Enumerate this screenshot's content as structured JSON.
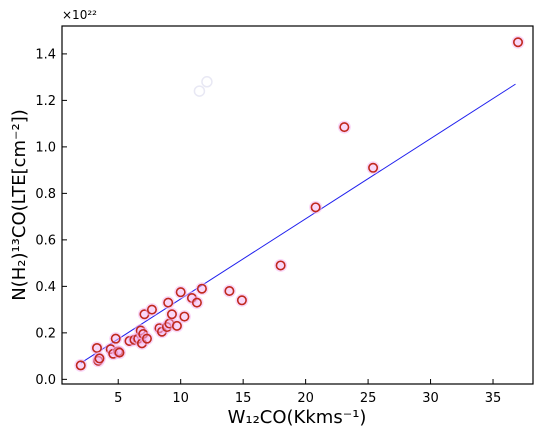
{
  "chart_data": {
    "type": "scatter",
    "xlim": [
      0.5,
      38.2
    ],
    "ylim": [
      -0.02,
      1.52
    ],
    "x_ticks": [
      5,
      10,
      15,
      20,
      25,
      30,
      35
    ],
    "y_ticks": [
      0.0,
      0.2,
      0.4,
      0.6,
      0.8,
      1.0,
      1.2,
      1.4
    ],
    "x_tick_labels": [
      "5",
      "10",
      "15",
      "20",
      "25",
      "30",
      "35"
    ],
    "y_tick_labels": [
      "0.0",
      "0.2",
      "0.4",
      "0.6",
      "0.8",
      "1.0",
      "1.2",
      "1.4"
    ],
    "y_scale_note": "×10²²",
    "xlabel": "W₁₂CO(Kkms⁻¹)",
    "ylabel": "N(H₂)¹³CO(LTE[cm⁻²])",
    "grid": false,
    "legend": "none",
    "colors": {
      "marker_edge": "#c0281c",
      "marker_halo": "#f4b6f2",
      "fit_line": "#2020ee"
    },
    "points": [
      {
        "x": 2.0,
        "y": 0.06
      },
      {
        "x": 3.3,
        "y": 0.135
      },
      {
        "x": 3.4,
        "y": 0.08
      },
      {
        "x": 3.5,
        "y": 0.09
      },
      {
        "x": 4.4,
        "y": 0.13
      },
      {
        "x": 4.6,
        "y": 0.11
      },
      {
        "x": 4.8,
        "y": 0.175
      },
      {
        "x": 5.0,
        "y": 0.12
      },
      {
        "x": 5.1,
        "y": 0.115
      },
      {
        "x": 5.9,
        "y": 0.165
      },
      {
        "x": 6.3,
        "y": 0.17
      },
      {
        "x": 6.6,
        "y": 0.175
      },
      {
        "x": 6.8,
        "y": 0.21
      },
      {
        "x": 6.9,
        "y": 0.155
      },
      {
        "x": 7.0,
        "y": 0.195
      },
      {
        "x": 7.1,
        "y": 0.28
      },
      {
        "x": 7.3,
        "y": 0.175
      },
      {
        "x": 7.7,
        "y": 0.3
      },
      {
        "x": 8.3,
        "y": 0.22
      },
      {
        "x": 8.5,
        "y": 0.205
      },
      {
        "x": 8.9,
        "y": 0.225
      },
      {
        "x": 9.0,
        "y": 0.33
      },
      {
        "x": 9.1,
        "y": 0.24
      },
      {
        "x": 9.3,
        "y": 0.28
      },
      {
        "x": 9.7,
        "y": 0.23
      },
      {
        "x": 10.0,
        "y": 0.375
      },
      {
        "x": 10.3,
        "y": 0.27
      },
      {
        "x": 10.9,
        "y": 0.35
      },
      {
        "x": 11.3,
        "y": 0.33
      },
      {
        "x": 11.7,
        "y": 0.39
      },
      {
        "x": 13.9,
        "y": 0.38
      },
      {
        "x": 14.9,
        "y": 0.34
      },
      {
        "x": 18.0,
        "y": 0.49
      },
      {
        "x": 20.8,
        "y": 0.74
      },
      {
        "x": 23.1,
        "y": 1.085
      },
      {
        "x": 25.4,
        "y": 0.91
      },
      {
        "x": 37.0,
        "y": 1.45
      }
    ],
    "faint_points": [
      {
        "x": 11.5,
        "y": 1.24
      },
      {
        "x": 12.1,
        "y": 1.28
      }
    ],
    "fit_line": {
      "x": [
        2.0,
        36.8
      ],
      "y": [
        0.07,
        1.27
      ]
    }
  }
}
